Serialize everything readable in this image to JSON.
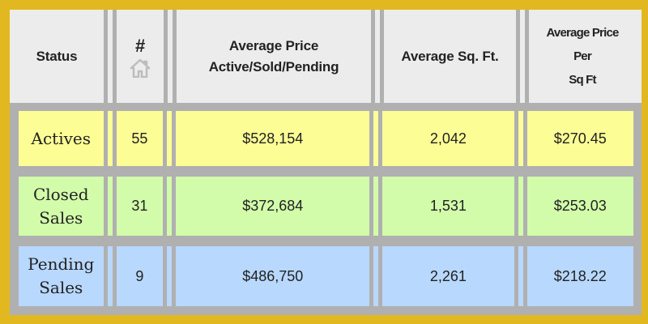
{
  "headers": {
    "status": "Status",
    "count": "#",
    "count_icon": "house-icon",
    "avg_price_1": "Average Price",
    "avg_price_2": "Active/Sold/Pending",
    "avg_sqft": "Average Sq. Ft.",
    "ppsf_1": "Average Price",
    "ppsf_2": "Per",
    "ppsf_3": "Sq Ft"
  },
  "rows": [
    {
      "status_1": "Actives",
      "status_2": "",
      "count": "55",
      "avg_price": "$528,154",
      "avg_sqft": "2,042",
      "ppsf": "$270.45",
      "color": "#fdfd96"
    },
    {
      "status_1": "Closed",
      "status_2": "Sales",
      "count": "31",
      "avg_price": "$372,684",
      "avg_sqft": "1,531",
      "ppsf": "$253.03",
      "color": "#d2fcaa"
    },
    {
      "status_1": "Pending",
      "status_2": "Sales",
      "count": "9",
      "avg_price": "$486,750",
      "avg_sqft": "2,261",
      "ppsf": "$218.22",
      "color": "#b8d8fe"
    }
  ],
  "colors": {
    "border": "#e2b820",
    "grid": "#b0b0b0",
    "header": "#ececec"
  }
}
